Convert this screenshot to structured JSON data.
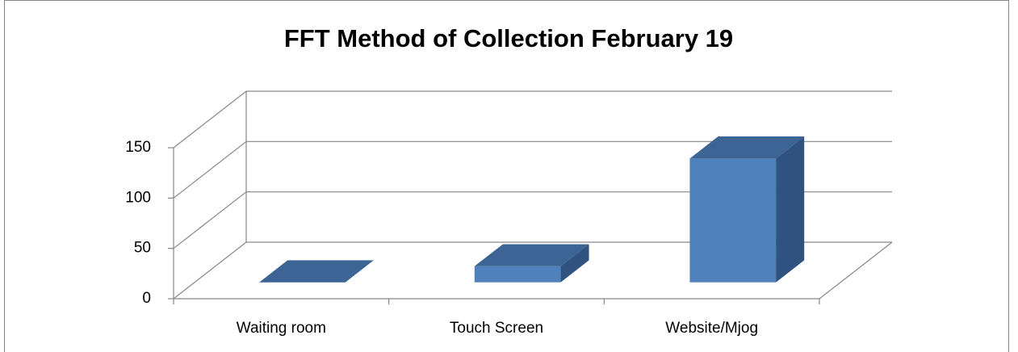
{
  "chart_data": {
    "type": "bar3d",
    "title": "FFT Method of Collection February 19",
    "categories": [
      "Waiting room",
      "Touch Screen",
      "Website/Mjog"
    ],
    "values": [
      0,
      16,
      123
    ],
    "color": "#4f81bd",
    "ylim": [
      0,
      150
    ],
    "yticks": [
      0,
      50,
      100,
      150
    ],
    "grid": true
  }
}
